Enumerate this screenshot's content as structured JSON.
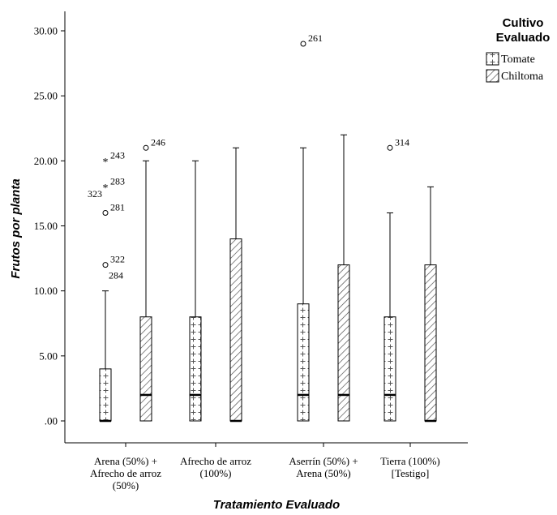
{
  "chart_data": {
    "type": "box",
    "title": "",
    "xlabel": "Tratamiento Evaluado",
    "ylabel": "Frutos por planta",
    "ylim": [
      -1.5,
      31.5
    ],
    "yticks": [
      0,
      5,
      10,
      15,
      20,
      25,
      30
    ],
    "ytick_labels": [
      ".00",
      "5.00",
      "10.00",
      "15.00",
      "20.00",
      "25.00",
      "30.00"
    ],
    "categories": [
      [
        "Arena (50%) +",
        "Afrecho de arroz",
        "(50%)"
      ],
      [
        "Afrecho de arroz",
        "(100%)"
      ],
      [
        "Aserrín (50%) +",
        "Arena (50%)"
      ],
      [
        "Tierra (100%)",
        "[Testigo]"
      ]
    ],
    "legend": {
      "title": [
        "Cultivo",
        "Evaluado"
      ],
      "position": "top-right",
      "items": [
        "Tomate",
        "Chiltoma"
      ]
    },
    "series": [
      {
        "name": "Tomate",
        "pattern": "crosses",
        "boxes": [
          {
            "min": 0,
            "q1": 0,
            "median": 0,
            "q3": 4,
            "max": 10,
            "outliers": [
              {
                "y": 20,
                "marker": "star",
                "label": "243"
              },
              {
                "y": 18,
                "marker": "star",
                "label": "283"
              },
              {
                "y": 16,
                "marker": "circle",
                "label": "281"
              },
              {
                "y": 12,
                "marker": "circle",
                "label": "322"
              }
            ]
          },
          {
            "min": 0,
            "q1": 0,
            "median": 2,
            "q3": 8,
            "max": 20,
            "outliers": []
          },
          {
            "min": 0,
            "q1": 0,
            "median": 2,
            "q3": 9,
            "max": 21,
            "outliers": [
              {
                "y": 29,
                "marker": "circle",
                "label": "261"
              }
            ]
          },
          {
            "min": 0,
            "q1": 0,
            "median": 2,
            "q3": 8,
            "max": 16,
            "outliers": [
              {
                "y": 21,
                "marker": "circle",
                "label": "314"
              }
            ]
          }
        ]
      },
      {
        "name": "Chiltoma",
        "pattern": "diagonal",
        "boxes": [
          {
            "min": 0,
            "q1": 0,
            "median": 2,
            "q3": 8,
            "max": 20,
            "outliers": [
              {
                "y": 21,
                "marker": "circle",
                "label": "246"
              }
            ]
          },
          {
            "min": 0,
            "q1": 0,
            "median": 0,
            "q3": 14,
            "max": 21,
            "outliers": []
          },
          {
            "min": 0,
            "q1": 0,
            "median": 2,
            "q3": 12,
            "max": 22,
            "outliers": []
          },
          {
            "min": 0,
            "q1": 0,
            "median": 0,
            "q3": 12,
            "max": 18,
            "outliers": []
          }
        ]
      }
    ],
    "extra_labels": [
      {
        "text": "323",
        "y": 17.6,
        "category": 0
      },
      {
        "text": "284",
        "y": 11.2,
        "category": 0
      }
    ]
  }
}
